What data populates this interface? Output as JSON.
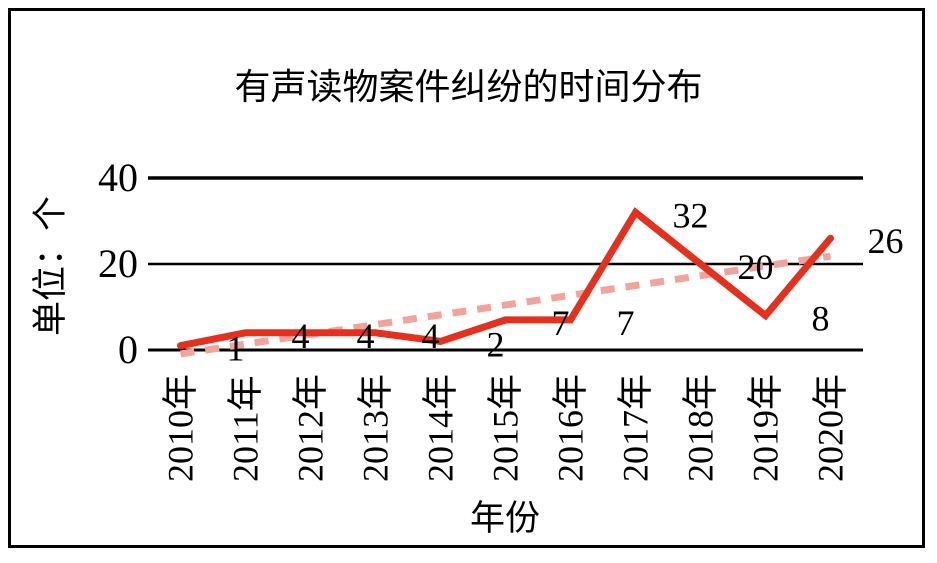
{
  "window": {
    "background": "#ffffff",
    "border_color": "#000000"
  },
  "chart_data": {
    "type": "line",
    "title": "有声读物案件纠纷的时间分布",
    "xlabel": "年份",
    "ylabel": "单位：个",
    "categories": [
      "2010年",
      "2011年",
      "2012年",
      "2013年",
      "2014年",
      "2015年",
      "2016年",
      "2017年",
      "2018年",
      "2019年",
      "2020年"
    ],
    "series": [
      {
        "name": "cases-per-year",
        "values": [
          1,
          4,
          4,
          4,
          2,
          7,
          7,
          32,
          20,
          8,
          26
        ],
        "color": "#e5301d",
        "style": "solid"
      },
      {
        "name": "linear-trendline",
        "derived": "linear-regression-of-values",
        "color": "#f2a49c",
        "style": "dashed"
      }
    ],
    "data_labels": [
      "1",
      "4",
      "4",
      "4",
      "2",
      "7",
      "7",
      "32",
      "20",
      "8",
      "26"
    ],
    "yticks": [
      0,
      20,
      40
    ],
    "ylim": [
      0,
      40
    ],
    "grid": true,
    "legend": false,
    "text_color": "#000000",
    "gridline_color": "#000000"
  }
}
